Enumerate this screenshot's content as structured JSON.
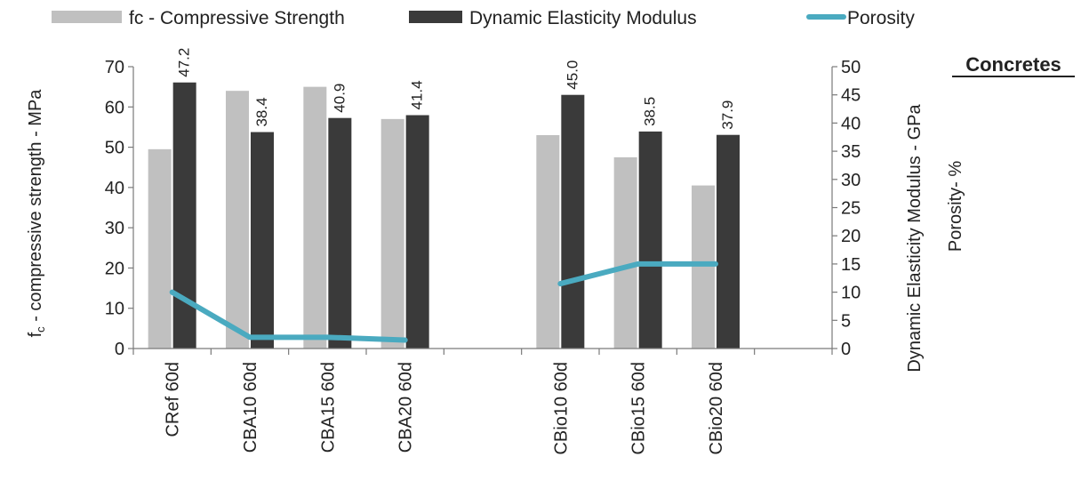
{
  "chart_data": {
    "type": "bar",
    "title": "Concretes",
    "categories": [
      "CRef 60d",
      "CBA10 60d",
      "CBA15 60d",
      "CBA20 60d",
      "",
      "CBio10 60d",
      "CBio15 60d",
      "CBio20 60d",
      ""
    ],
    "series": [
      {
        "name": "fc - Compressive Strength",
        "axis": "left",
        "kind": "bar",
        "color": "#c0c0c0",
        "values": [
          49.5,
          64,
          65,
          57,
          null,
          53,
          47.5,
          40.5,
          null
        ]
      },
      {
        "name": "Dynamic Elasticity Modulus",
        "axis": "right",
        "kind": "bar",
        "color": "#3a3a3a",
        "values": [
          47.2,
          38.4,
          40.9,
          41.4,
          null,
          45.0,
          38.5,
          37.9,
          null
        ],
        "data_labels": [
          "47.2",
          "38.4",
          "40.9",
          "41.4",
          "",
          "45.0",
          "38.5",
          "37.9",
          ""
        ]
      },
      {
        "name": "Porosity",
        "axis": "right",
        "kind": "line",
        "color": "#4aaac0",
        "values": [
          10,
          2,
          2,
          1.5,
          null,
          11.5,
          15,
          15,
          null
        ]
      }
    ],
    "y_left": {
      "label_main": "f",
      "label_sub": "c",
      "label_rest": " - compressive strength  - MPa",
      "ylim": [
        0,
        70
      ],
      "ticks": [
        "0",
        "10",
        "20",
        "30",
        "40",
        "50",
        "60",
        "70"
      ]
    },
    "y_right": {
      "label": "Dynamic Elasticity Modulus - GPa",
      "label2": "Porosity- %",
      "ylim": [
        0,
        50
      ],
      "ticks": [
        "0",
        "5",
        "10",
        "15",
        "20",
        "25",
        "30",
        "35",
        "40",
        "45",
        "50"
      ]
    },
    "grid": false,
    "legend_position": "top"
  }
}
